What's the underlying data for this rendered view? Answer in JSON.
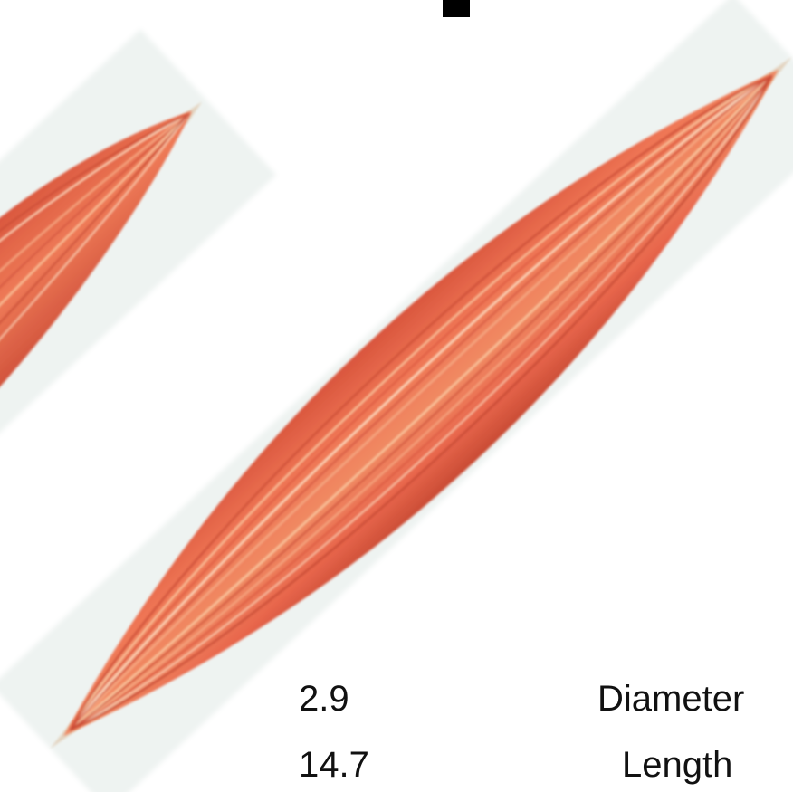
{
  "measurements": {
    "diameter": {
      "value": "2.9",
      "label": "Diameter"
    },
    "length": {
      "value": "14.7",
      "label": "Length"
    }
  },
  "colors": {
    "muscle_main": "#e8664c",
    "muscle_dark": "#c94b34",
    "muscle_light": "#f7b08a",
    "fiber_highlight": "#fde1c6",
    "tendon": "#e9dfcf",
    "backdrop_panel": "#eef3f1",
    "marker": "#000000"
  },
  "icons": {
    "top_marker": "black-rectangle-marker-icon"
  }
}
